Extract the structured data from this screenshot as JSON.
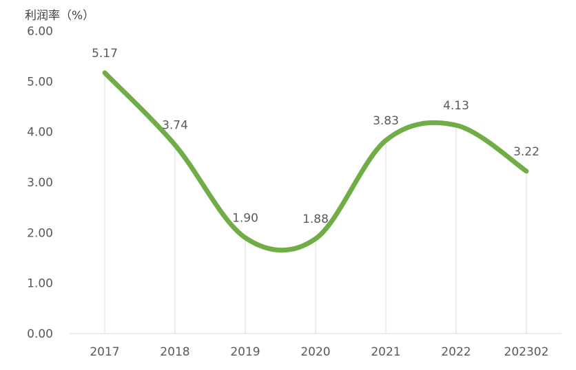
{
  "chart_data": {
    "type": "line",
    "title": "",
    "xlabel": "",
    "ylabel": "利润率（%）",
    "categories": [
      "2017",
      "2018",
      "2019",
      "2020",
      "2021",
      "2022",
      "202302"
    ],
    "series": [
      {
        "values": [
          5.17,
          3.74,
          1.9,
          1.88,
          3.83,
          4.13,
          3.22
        ],
        "labels": [
          "5.17",
          "3.74",
          "1.90",
          "1.88",
          "3.83",
          "4.13",
          "3.22"
        ],
        "color": "#70ad47",
        "smooth": true
      }
    ],
    "ylim": [
      0,
      6
    ],
    "yticks": [
      "0.00",
      "1.00",
      "2.00",
      "3.00",
      "4.00",
      "5.00",
      "6.00"
    ],
    "grid": "vertical drop lines at each category",
    "legend": "none",
    "axis_color": "#d9d9d9"
  }
}
